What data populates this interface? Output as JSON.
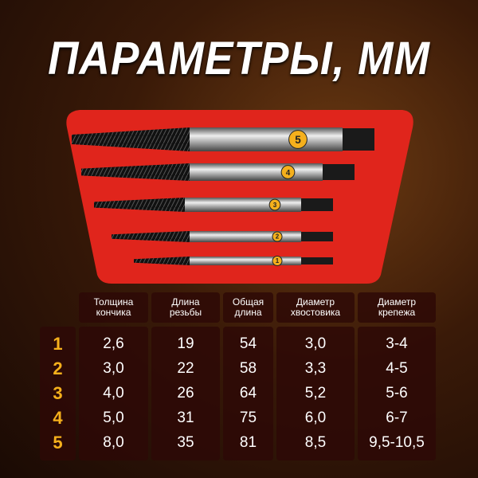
{
  "title": "ПАРАМЕТРЫ, ММ",
  "colors": {
    "accent": "#f5b01c",
    "case": "#e0251c",
    "background": "#3a1a08"
  },
  "tool_labels": [
    "5",
    "4",
    "3",
    "2",
    "1"
  ],
  "table": {
    "row_labels": [
      "1",
      "2",
      "3",
      "4",
      "5"
    ],
    "columns": [
      {
        "header": [
          "Толщина",
          "кончика"
        ],
        "values": [
          "2,6",
          "3,0",
          "4,0",
          "5,0",
          "8,0"
        ]
      },
      {
        "header": [
          "Длина",
          "резьбы"
        ],
        "values": [
          "19",
          "22",
          "26",
          "31",
          "35"
        ]
      },
      {
        "header": [
          "Общая",
          "длина"
        ],
        "values": [
          "54",
          "58",
          "64",
          "75",
          "81"
        ]
      },
      {
        "header": [
          "Диаметр",
          "хвостовика"
        ],
        "values": [
          "3,0",
          "3,3",
          "5,2",
          "6,0",
          "8,5"
        ]
      },
      {
        "header": [
          "Диаметр",
          "крепежа"
        ],
        "values": [
          "3-4",
          "4-5",
          "5-6",
          "6-7",
          "9,5-10,5"
        ]
      }
    ]
  }
}
